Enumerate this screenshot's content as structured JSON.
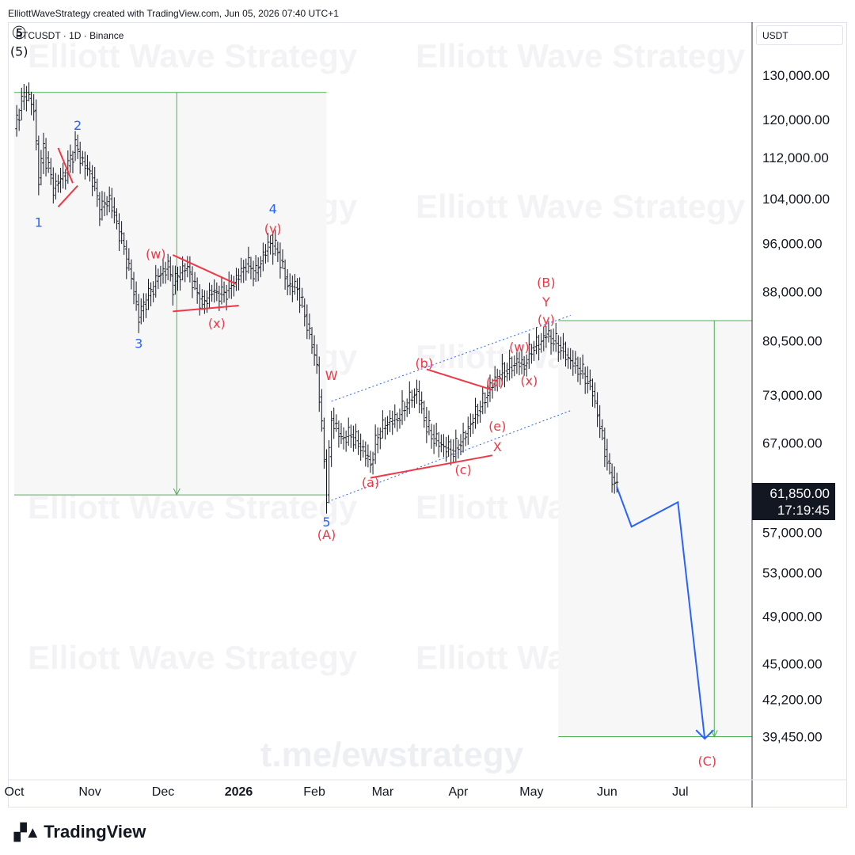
{
  "header": {
    "credit": "ElliottWaveStrategy created with TradingView.com, Jun 05, 2026 07:40 UTC+1"
  },
  "symbol": {
    "label": "BTCUSDT · 1D · Binance"
  },
  "currency": "USDT",
  "last_price": {
    "value": "61,850.00",
    "countdown": "17:19:45"
  },
  "watermark": {
    "text": "Elliott Wave Strategy",
    "link": "t.me/ewstrategy"
  },
  "footer": {
    "brand": "TradingView"
  },
  "colors": {
    "blue_label": "#2962ff",
    "red_label": "#f23645",
    "green": "#4caf50",
    "forecast": "#2962ff",
    "bar": "#131722"
  },
  "chart_data": {
    "type": "ohlc",
    "title": "BTCUSDT · 1D · Binance",
    "y_scale": "log",
    "ylim": [
      36500,
      143000
    ],
    "price_ticks": [
      130000,
      120000,
      112000,
      104000,
      96000,
      88000,
      80500,
      73000,
      67000,
      61850,
      57000,
      53000,
      49000,
      45000,
      42200,
      39450
    ],
    "price_tick_labels": [
      "130,000.00",
      "120,000.00",
      "112,000.00",
      "104,000.00",
      "96,000.00",
      "88,000.00",
      "80,500.00",
      "73,000.00",
      "67,000.00",
      "61,850.00",
      "57,000.00",
      "53,000.00",
      "49,000.00",
      "45,000.00",
      "42,200.00",
      "39,450.00"
    ],
    "time_labels": [
      {
        "label": "Oct",
        "date": "2025-10-01"
      },
      {
        "label": "Nov",
        "date": "2025-11-01"
      },
      {
        "label": "Dec",
        "date": "2025-12-01"
      },
      {
        "label": "2026",
        "date": "2026-01-01",
        "bold": true
      },
      {
        "label": "Feb",
        "date": "2026-02-01"
      },
      {
        "label": "Mar",
        "date": "2026-03-01"
      },
      {
        "label": "Apr",
        "date": "2026-04-01"
      },
      {
        "label": "May",
        "date": "2026-05-01"
      },
      {
        "label": "Jun",
        "date": "2026-06-01"
      },
      {
        "label": "Jul",
        "date": "2026-07-01"
      }
    ],
    "price_path": [
      [
        "2025-10-01",
        118000
      ],
      [
        "2025-10-04",
        124000
      ],
      [
        "2025-10-06",
        126000
      ],
      [
        "2025-10-09",
        122000
      ],
      [
        "2025-10-11",
        108000
      ],
      [
        "2025-10-13",
        114000
      ],
      [
        "2025-10-17",
        106000
      ],
      [
        "2025-10-22",
        109000
      ],
      [
        "2025-10-26",
        114500
      ],
      [
        "2025-10-28",
        112000
      ],
      [
        "2025-11-02",
        108000
      ],
      [
        "2025-11-05",
        102000
      ],
      [
        "2025-11-09",
        104000
      ],
      [
        "2025-11-13",
        98000
      ],
      [
        "2025-11-15",
        95000
      ],
      [
        "2025-11-18",
        90000
      ],
      [
        "2025-11-21",
        84000
      ],
      [
        "2025-11-23",
        86000
      ],
      [
        "2025-11-26",
        88000
      ],
      [
        "2025-11-29",
        90500
      ],
      [
        "2025-12-03",
        92000
      ],
      [
        "2025-12-05",
        89000
      ],
      [
        "2025-12-08",
        91000
      ],
      [
        "2025-12-11",
        92000
      ],
      [
        "2025-12-14",
        88500
      ],
      [
        "2025-12-17",
        86000
      ],
      [
        "2025-12-21",
        88000
      ],
      [
        "2025-12-25",
        87500
      ],
      [
        "2025-12-28",
        88500
      ],
      [
        "2026-01-01",
        90500
      ],
      [
        "2026-01-04",
        92500
      ],
      [
        "2026-01-08",
        91000
      ],
      [
        "2026-01-11",
        94000
      ],
      [
        "2026-01-14",
        96000
      ],
      [
        "2026-01-17",
        94500
      ],
      [
        "2026-01-21",
        89000
      ],
      [
        "2026-01-25",
        88500
      ],
      [
        "2026-01-29",
        83000
      ],
      [
        "2026-02-02",
        77000
      ],
      [
        "2026-02-05",
        65000
      ],
      [
        "2026-02-06",
        61000
      ],
      [
        "2026-02-08",
        70000
      ],
      [
        "2026-02-12",
        67500
      ],
      [
        "2026-02-16",
        68000
      ],
      [
        "2026-02-20",
        66500
      ],
      [
        "2026-02-24",
        64500
      ],
      [
        "2026-02-27",
        68000
      ],
      [
        "2026-03-03",
        69500
      ],
      [
        "2026-03-07",
        70000
      ],
      [
        "2026-03-11",
        72000
      ],
      [
        "2026-03-15",
        73500
      ],
      [
        "2026-03-19",
        69000
      ],
      [
        "2026-03-22",
        67500
      ],
      [
        "2026-03-26",
        66500
      ],
      [
        "2026-03-30",
        66000
      ],
      [
        "2026-04-03",
        67500
      ],
      [
        "2026-04-07",
        70000
      ],
      [
        "2026-04-11",
        72000
      ],
      [
        "2026-04-14",
        74000
      ],
      [
        "2026-04-17",
        75500
      ],
      [
        "2026-04-21",
        76500
      ],
      [
        "2026-04-25",
        77500
      ],
      [
        "2026-04-28",
        77000
      ],
      [
        "2026-05-01",
        79500
      ],
      [
        "2026-05-04",
        80000
      ],
      [
        "2026-05-07",
        81500
      ],
      [
        "2026-05-10",
        80500
      ],
      [
        "2026-05-13",
        79500
      ],
      [
        "2026-05-16",
        78000
      ],
      [
        "2026-05-19",
        77000
      ],
      [
        "2026-05-23",
        75500
      ],
      [
        "2026-05-26",
        73500
      ],
      [
        "2026-05-29",
        69000
      ],
      [
        "2026-06-02",
        63500
      ],
      [
        "2026-06-05",
        61850
      ]
    ],
    "forecast_path": [
      [
        "2026-06-05",
        61850
      ],
      [
        "2026-06-11",
        57600
      ],
      [
        "2026-06-30",
        60200
      ],
      [
        "2026-07-11",
        39300
      ]
    ],
    "wave_labels": [
      {
        "text": "⑤",
        "date": "2025-10-03",
        "price": 140000,
        "color": "#131722"
      },
      {
        "text": "(5)",
        "date": "2025-10-03",
        "price": 135500,
        "color": "#131722"
      },
      {
        "text": "1",
        "date": "2025-10-11",
        "price": 99500,
        "color": "#2962ff"
      },
      {
        "text": "2",
        "date": "2025-10-27",
        "price": 118500,
        "color": "#2962ff"
      },
      {
        "text": "3",
        "date": "2025-11-21",
        "price": 80000,
        "color": "#2962ff"
      },
      {
        "text": "4",
        "date": "2026-01-15",
        "price": 102000,
        "color": "#2962ff"
      },
      {
        "text": "5",
        "date": "2026-02-06",
        "price": 58000,
        "color": "#2962ff"
      },
      {
        "text": "(y)",
        "date": "2026-01-15",
        "price": 98400,
        "color": "#f23645"
      },
      {
        "text": "(w)",
        "date": "2025-11-28",
        "price": 94000,
        "color": "#f23645"
      },
      {
        "text": "(x)",
        "date": "2025-12-23",
        "price": 83000,
        "color": "#f23645"
      },
      {
        "text": "(A)",
        "date": "2026-02-06",
        "price": 56700,
        "color": "#f23645"
      },
      {
        "text": "W",
        "date": "2026-02-08",
        "price": 75500,
        "color": "#f23645"
      },
      {
        "text": "(a)",
        "date": "2026-02-24",
        "price": 62300,
        "color": "#f23645"
      },
      {
        "text": "(b)",
        "date": "2026-03-18",
        "price": 77200,
        "color": "#f23645"
      },
      {
        "text": "(c)",
        "date": "2026-04-03",
        "price": 63700,
        "color": "#f23645"
      },
      {
        "text": "(d)",
        "date": "2026-04-16",
        "price": 74600,
        "color": "#f23645"
      },
      {
        "text": "(e)",
        "date": "2026-04-17",
        "price": 68900,
        "color": "#f23645"
      },
      {
        "text": "X",
        "date": "2026-04-17",
        "price": 66400,
        "color": "#f23645"
      },
      {
        "text": "(w)",
        "date": "2026-04-26",
        "price": 79500,
        "color": "#f23645"
      },
      {
        "text": "(x)",
        "date": "2026-04-30",
        "price": 74800,
        "color": "#f23645"
      },
      {
        "text": "(y)",
        "date": "2026-05-07",
        "price": 83500,
        "color": "#f23645"
      },
      {
        "text": "Y",
        "date": "2026-05-07",
        "price": 86200,
        "color": "#f23645"
      },
      {
        "text": "(B)",
        "date": "2026-05-07",
        "price": 89300,
        "color": "#f23645"
      },
      {
        "text": "(C)",
        "date": "2026-07-12",
        "price": 37700,
        "color": "#f23645"
      }
    ],
    "red_trendlines": [
      {
        "from": [
          "2025-10-19",
          114000
        ],
        "to": [
          "2025-10-25",
          107000
        ]
      },
      {
        "from": [
          "2025-10-19",
          102500
        ],
        "to": [
          "2025-10-27",
          106500
        ]
      },
      {
        "from": [
          "2025-12-05",
          94000
        ],
        "to": [
          "2025-12-31",
          89200
        ]
      },
      {
        "from": [
          "2025-12-05",
          84900
        ],
        "to": [
          "2026-01-01",
          85800
        ]
      },
      {
        "from": [
          "2026-03-19",
          76500
        ],
        "to": [
          "2026-04-15",
          73700
        ]
      },
      {
        "from": [
          "2026-02-24",
          62900
        ],
        "to": [
          "2026-04-15",
          65500
        ]
      }
    ],
    "channel_lines": [
      {
        "from": [
          "2026-02-08",
          72200
        ],
        "to": [
          "2026-05-17",
          84300
        ]
      },
      {
        "from": [
          "2026-02-08",
          60400
        ],
        "to": [
          "2026-05-17",
          71000
        ]
      }
    ],
    "measure_boxes": [
      {
        "from_date": "2025-10-01",
        "to_date": "2026-02-06",
        "high": 126000,
        "low": 61000
      },
      {
        "from_date": "2026-05-12",
        "to_date": "2026-07-31",
        "high": 83500,
        "low": 39450
      }
    ]
  }
}
